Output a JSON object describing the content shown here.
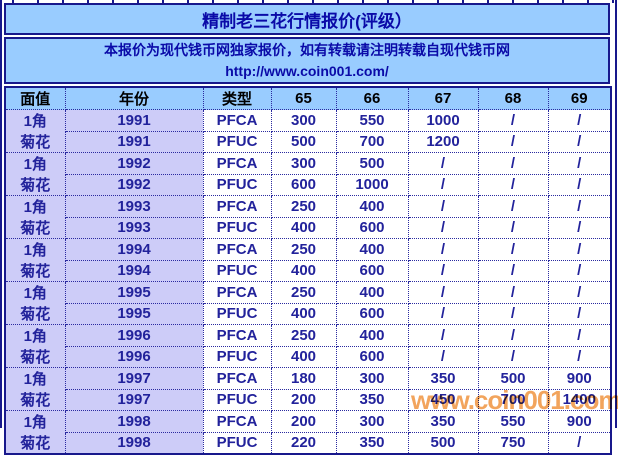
{
  "title": "精制老三花行情报价(评级）",
  "notice": {
    "line1": "本报价为现代钱币网独家报价，如有转载请注明转载自现代钱币网",
    "line2": "http://www.coin001.com/"
  },
  "watermark": "www.coin001.com",
  "colors": {
    "header_bg": "#99ccff",
    "group_bg": "#cdccf8",
    "border": "#18188c",
    "data_text": "#22229b",
    "watermark": "#f2a45c"
  },
  "table": {
    "headers": [
      "面值",
      "年份",
      "类型",
      "65",
      "66",
      "67",
      "68",
      "69"
    ],
    "rows": [
      [
        "1角",
        "1991",
        "PFCA",
        "300",
        "550",
        "1000",
        "/",
        "/"
      ],
      [
        "菊花",
        "1991",
        "PFUC",
        "500",
        "700",
        "1200",
        "/",
        "/"
      ],
      [
        "1角",
        "1992",
        "PFCA",
        "300",
        "500",
        "/",
        "/",
        "/"
      ],
      [
        "菊花",
        "1992",
        "PFUC",
        "600",
        "1000",
        "/",
        "/",
        "/"
      ],
      [
        "1角",
        "1993",
        "PFCA",
        "250",
        "400",
        "/",
        "/",
        "/"
      ],
      [
        "菊花",
        "1993",
        "PFUC",
        "400",
        "600",
        "/",
        "/",
        "/"
      ],
      [
        "1角",
        "1994",
        "PFCA",
        "250",
        "400",
        "/",
        "/",
        "/"
      ],
      [
        "菊花",
        "1994",
        "PFUC",
        "400",
        "600",
        "/",
        "/",
        "/"
      ],
      [
        "1角",
        "1995",
        "PFCA",
        "250",
        "400",
        "/",
        "/",
        "/"
      ],
      [
        "菊花",
        "1995",
        "PFUC",
        "400",
        "600",
        "/",
        "/",
        "/"
      ],
      [
        "1角",
        "1996",
        "PFCA",
        "250",
        "400",
        "/",
        "/",
        "/"
      ],
      [
        "菊花",
        "1996",
        "PFUC",
        "400",
        "600",
        "/",
        "/",
        "/"
      ],
      [
        "1角",
        "1997",
        "PFCA",
        "180",
        "300",
        "350",
        "500",
        "900"
      ],
      [
        "菊花",
        "1997",
        "PFUC",
        "200",
        "350",
        "450",
        "700",
        "1400"
      ],
      [
        "1角",
        "1998",
        "PFCA",
        "200",
        "300",
        "350",
        "550",
        "900"
      ],
      [
        "菊花",
        "1998",
        "PFUC",
        "220",
        "350",
        "500",
        "750",
        "/"
      ]
    ],
    "column_names": [
      "face-value-cell",
      "year-cell",
      "type-cell",
      "grade-65-cell",
      "grade-66-cell",
      "grade-67-cell",
      "grade-68-cell",
      "grade-69-cell"
    ]
  }
}
